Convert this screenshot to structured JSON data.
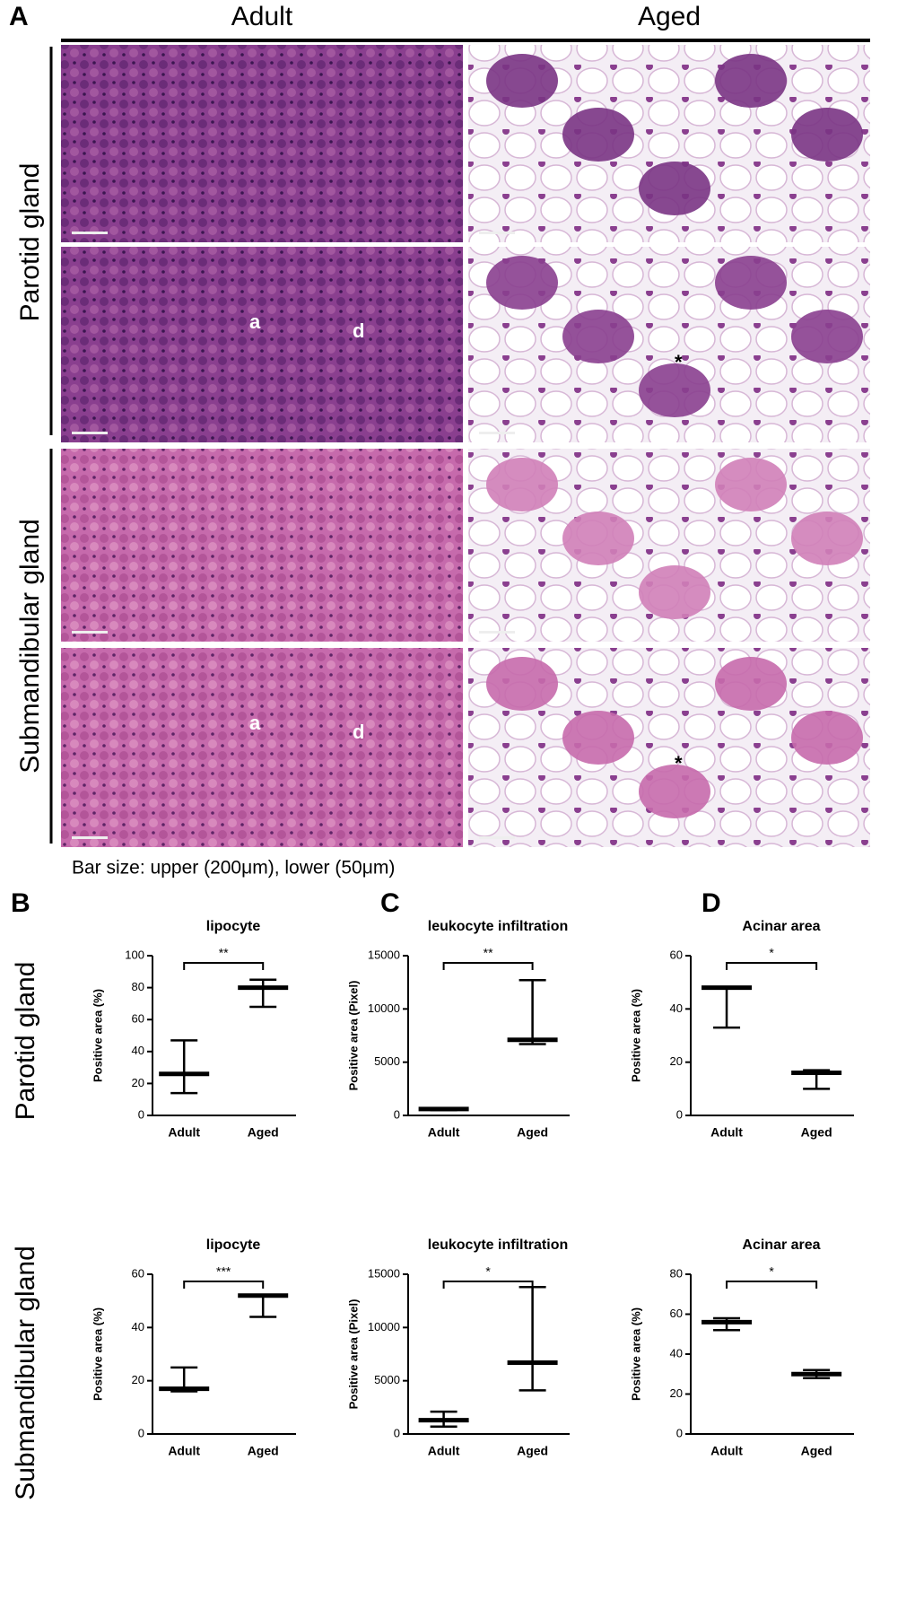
{
  "figure": {
    "panel_a": {
      "letter": "A",
      "columns": [
        "Adult",
        "Aged"
      ],
      "rows": [
        "Parotid gland",
        "Submandibular gland"
      ],
      "annotations": [
        [],
        [],
        [
          "a",
          "d"
        ],
        [
          "*"
        ],
        [],
        [],
        [
          "a",
          "d"
        ],
        [
          "*"
        ]
      ],
      "caption": "Bar size: upper (200μm), lower (50μm)"
    },
    "letters": [
      "B",
      "C",
      "D"
    ],
    "row_labels": [
      "Parotid gland",
      "Submandibular gland"
    ]
  },
  "chart_data": [
    {
      "type": "range",
      "title": "lipocyte",
      "ylabel": "Positive area (%)",
      "categories": [
        "Adult",
        "Aged"
      ],
      "median": [
        26,
        80
      ],
      "min": [
        14,
        68
      ],
      "max": [
        47,
        85
      ],
      "sig": "**",
      "ylim": [
        0,
        100
      ],
      "yticks": [
        0,
        20,
        40,
        60,
        80,
        100
      ]
    },
    {
      "type": "range",
      "title": "leukocyte infiltration",
      "ylabel": "Positive area (Pixel)",
      "categories": [
        "Adult",
        "Aged"
      ],
      "median": [
        600,
        7100
      ],
      "min": [
        500,
        6700
      ],
      "max": [
        700,
        12700
      ],
      "sig": "**",
      "ylim": [
        0,
        15000
      ],
      "yticks": [
        0,
        5000,
        10000,
        15000
      ]
    },
    {
      "type": "range",
      "title": "Acinar area",
      "ylabel": "Positive area (%)",
      "categories": [
        "Adult",
        "Aged"
      ],
      "median": [
        48,
        16
      ],
      "min": [
        33,
        10
      ],
      "max": [
        48,
        17
      ],
      "sig": "*",
      "ylim": [
        0,
        60
      ],
      "yticks": [
        0,
        20,
        40,
        60
      ]
    },
    {
      "type": "range",
      "title": "lipocyte",
      "ylabel": "Positive area (%)",
      "categories": [
        "Adult",
        "Aged"
      ],
      "median": [
        17,
        52
      ],
      "min": [
        16,
        44
      ],
      "max": [
        25,
        52
      ],
      "sig": "***",
      "ylim": [
        0,
        60
      ],
      "yticks": [
        0,
        20,
        40,
        60
      ]
    },
    {
      "type": "range",
      "title": "leukocyte infiltration",
      "ylabel": "Positive area (Pixel)",
      "categories": [
        "Adult",
        "Aged"
      ],
      "median": [
        1300,
        6700
      ],
      "min": [
        700,
        4100
      ],
      "max": [
        2100,
        13800
      ],
      "sig": "*",
      "ylim": [
        0,
        15000
      ],
      "yticks": [
        0,
        5000,
        10000,
        15000
      ]
    },
    {
      "type": "range",
      "title": "Acinar area",
      "ylabel": "Positive area (%)",
      "categories": [
        "Adult",
        "Aged"
      ],
      "median": [
        56,
        30
      ],
      "min": [
        52,
        28
      ],
      "max": [
        58,
        32
      ],
      "sig": "*",
      "ylim": [
        0,
        80
      ],
      "yticks": [
        0,
        20,
        40,
        60,
        80
      ]
    }
  ]
}
